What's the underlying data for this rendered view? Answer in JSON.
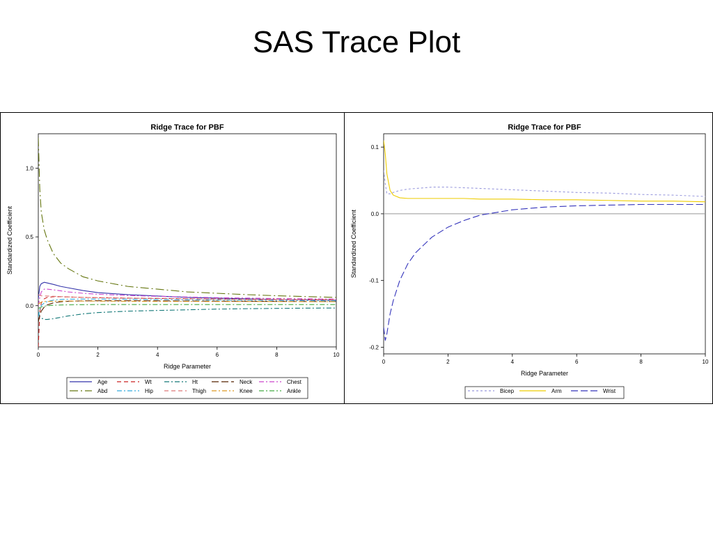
{
  "slide": {
    "title": "SAS Trace Plot"
  },
  "chart_data": [
    {
      "type": "line",
      "title": "Ridge Trace for PBF",
      "xlabel": "Ridge Parameter",
      "ylabel": "Standardized Coefficient",
      "xlim": [
        0,
        10
      ],
      "ylim": [
        -0.3,
        1.25
      ],
      "xticks": [
        0,
        2,
        4,
        6,
        8,
        10
      ],
      "xtick_labels": [
        "0",
        "2",
        "4",
        "6",
        "8",
        "10"
      ],
      "yticks": [
        0.0,
        0.5,
        1.0
      ],
      "ytick_labels": [
        "0.0",
        "0.5",
        "1.0"
      ],
      "grid": false,
      "legend_position": "bottom",
      "x": [
        0,
        0.05,
        0.1,
        0.2,
        0.3,
        0.5,
        0.75,
        1,
        1.5,
        2,
        3,
        4,
        5,
        6,
        7,
        8,
        9,
        10
      ],
      "series": [
        {
          "name": "Age",
          "color": "#3333aa",
          "dash": "solid",
          "values": [
            0.05,
            0.14,
            0.16,
            0.17,
            0.165,
            0.155,
            0.14,
            0.13,
            0.11,
            0.095,
            0.08,
            0.07,
            0.06,
            0.055,
            0.05,
            0.045,
            0.042,
            0.04
          ]
        },
        {
          "name": "Wt",
          "color": "#cc2222",
          "dash": "dash",
          "values": [
            -0.3,
            -0.05,
            0.02,
            0.05,
            0.06,
            0.065,
            0.065,
            0.063,
            0.06,
            0.058,
            0.055,
            0.053,
            0.05,
            0.048,
            0.046,
            0.045,
            0.044,
            0.043
          ]
        },
        {
          "name": "Ht",
          "color": "#117777",
          "dash": "dashdot",
          "values": [
            -0.05,
            -0.08,
            -0.09,
            -0.1,
            -0.1,
            -0.095,
            -0.085,
            -0.075,
            -0.06,
            -0.05,
            -0.04,
            -0.035,
            -0.03,
            -0.025,
            -0.022,
            -0.02,
            -0.018,
            -0.017
          ]
        },
        {
          "name": "Neck",
          "color": "#552200",
          "dash": "longdash",
          "values": [
            -0.12,
            -0.07,
            -0.04,
            -0.01,
            0.005,
            0.02,
            0.028,
            0.032,
            0.035,
            0.036,
            0.036,
            0.035,
            0.034,
            0.033,
            0.032,
            0.031,
            0.03,
            0.03
          ]
        },
        {
          "name": "Chest",
          "color": "#cc44cc",
          "dash": "dashdot",
          "values": [
            0.0,
            0.06,
            0.1,
            0.12,
            0.12,
            0.115,
            0.108,
            0.1,
            0.09,
            0.083,
            0.074,
            0.068,
            0.063,
            0.058,
            0.055,
            0.052,
            0.05,
            0.048
          ]
        },
        {
          "name": "Abd",
          "color": "#667711",
          "dash": "longdashdot",
          "values": [
            1.22,
            0.85,
            0.68,
            0.55,
            0.48,
            0.38,
            0.31,
            0.27,
            0.21,
            0.18,
            0.14,
            0.12,
            0.1,
            0.09,
            0.08,
            0.072,
            0.066,
            0.06
          ]
        },
        {
          "name": "Hip",
          "color": "#33aadd",
          "dash": "dashdot",
          "values": [
            -0.08,
            -0.03,
            0.0,
            0.02,
            0.03,
            0.04,
            0.045,
            0.047,
            0.048,
            0.048,
            0.047,
            0.045,
            0.043,
            0.041,
            0.04,
            0.038,
            0.037,
            0.036
          ]
        },
        {
          "name": "Thigh",
          "color": "#dd7777",
          "dash": "dash",
          "values": [
            0.08,
            0.075,
            0.072,
            0.07,
            0.07,
            0.068,
            0.066,
            0.064,
            0.06,
            0.058,
            0.055,
            0.052,
            0.05,
            0.048,
            0.046,
            0.045,
            0.044,
            0.043
          ]
        },
        {
          "name": "Knee",
          "color": "#dd9922",
          "dash": "dashdot",
          "values": [
            0.01,
            0.02,
            0.025,
            0.03,
            0.03,
            0.032,
            0.033,
            0.033,
            0.033,
            0.033,
            0.032,
            0.031,
            0.031,
            0.03,
            0.03,
            0.03,
            0.029,
            0.029
          ]
        },
        {
          "name": "Ankle",
          "color": "#44aa44",
          "dash": "dashdot",
          "values": [
            -0.02,
            -0.015,
            -0.01,
            -0.005,
            0.0,
            0.003,
            0.005,
            0.006,
            0.007,
            0.008,
            0.008,
            0.008,
            0.008,
            0.008,
            0.008,
            0.008,
            0.008,
            0.008
          ]
        }
      ]
    },
    {
      "type": "line",
      "title": "Ridge Trace for PBF",
      "xlabel": "Ridge Parameter",
      "ylabel": "Standardized Coefficient",
      "xlim": [
        0,
        10
      ],
      "ylim": [
        -0.21,
        0.12
      ],
      "xticks": [
        0,
        2,
        4,
        6,
        8,
        10
      ],
      "xtick_labels": [
        "0",
        "2",
        "4",
        "6",
        "8",
        "10"
      ],
      "yticks": [
        -0.2,
        -0.1,
        0.0,
        0.1
      ],
      "ytick_labels": [
        "-0.2",
        "-0.1",
        "0.0",
        "0.1"
      ],
      "reference_line": 0.0,
      "grid": false,
      "legend_position": "bottom",
      "x": [
        0,
        0.05,
        0.1,
        0.2,
        0.3,
        0.5,
        0.75,
        1,
        1.5,
        2,
        2.5,
        3,
        4,
        5,
        6,
        7,
        8,
        9,
        10
      ],
      "series": [
        {
          "name": "Bicep",
          "color": "#9999dd",
          "dash": "shortdash",
          "values": [
            0.065,
            0.045,
            0.03,
            0.03,
            0.032,
            0.035,
            0.037,
            0.038,
            0.04,
            0.04,
            0.039,
            0.038,
            0.036,
            0.034,
            0.032,
            0.031,
            0.029,
            0.028,
            0.026
          ]
        },
        {
          "name": "Arm",
          "color": "#eecc00",
          "dash": "solid",
          "values": [
            0.11,
            0.09,
            0.06,
            0.035,
            0.028,
            0.024,
            0.023,
            0.023,
            0.023,
            0.023,
            0.023,
            0.022,
            0.022,
            0.021,
            0.021,
            0.02,
            0.019,
            0.019,
            0.018
          ]
        },
        {
          "name": "Wrist",
          "color": "#3333bb",
          "dash": "longdash",
          "values": [
            -0.17,
            -0.19,
            -0.18,
            -0.15,
            -0.13,
            -0.1,
            -0.075,
            -0.058,
            -0.035,
            -0.02,
            -0.01,
            -0.002,
            0.006,
            0.01,
            0.012,
            0.013,
            0.014,
            0.014,
            0.014
          ]
        }
      ]
    }
  ]
}
